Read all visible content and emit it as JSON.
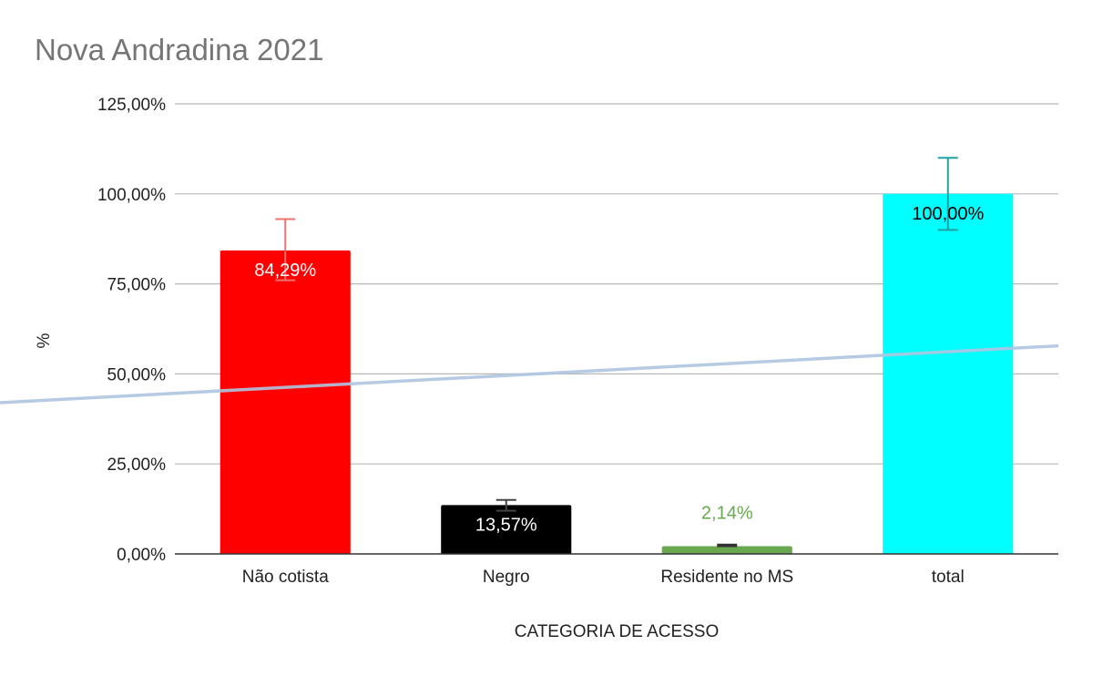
{
  "chart_data": {
    "type": "bar",
    "title": "Nova Andradina 2021",
    "xlabel": "CATEGORIA DE ACESSO",
    "ylabel": "%",
    "categories": [
      "Não cotista",
      "Negro",
      "Residente no MS",
      "total"
    ],
    "values": [
      84.29,
      13.57,
      2.14,
      100.0
    ],
    "value_labels": [
      "84,29%",
      "13,57%",
      "2,14%",
      "100,00%"
    ],
    "bar_colors": [
      "#ff0000",
      "#000000",
      "#6aa84f",
      "#00ffff"
    ],
    "label_colors": [
      "#ffffff",
      "#ffffff",
      "#6aa84f",
      "#000000"
    ],
    "label_position": [
      "inside",
      "inside",
      "above",
      "inside"
    ],
    "error_bar_colors": [
      "#f07070",
      "#444444",
      "#333333",
      "#20a0a0"
    ],
    "error_bars": [
      {
        "low": 76,
        "high": 93
      },
      {
        "low": 12,
        "high": 15
      },
      {
        "low": 2.14,
        "high": 2.6
      },
      {
        "low": 90,
        "high": 110
      }
    ],
    "trendline": {
      "type": "linear",
      "start": 42,
      "end": 57.8,
      "color": "#aec5e0"
    },
    "ylim": [
      0,
      125
    ],
    "yticks": [
      0,
      25,
      50,
      75,
      100,
      125
    ],
    "ytick_labels": [
      "0,00%",
      "25,00%",
      "50,00%",
      "75,00%",
      "100,00%",
      "125,00%"
    ],
    "grid": true,
    "legend": "none"
  }
}
